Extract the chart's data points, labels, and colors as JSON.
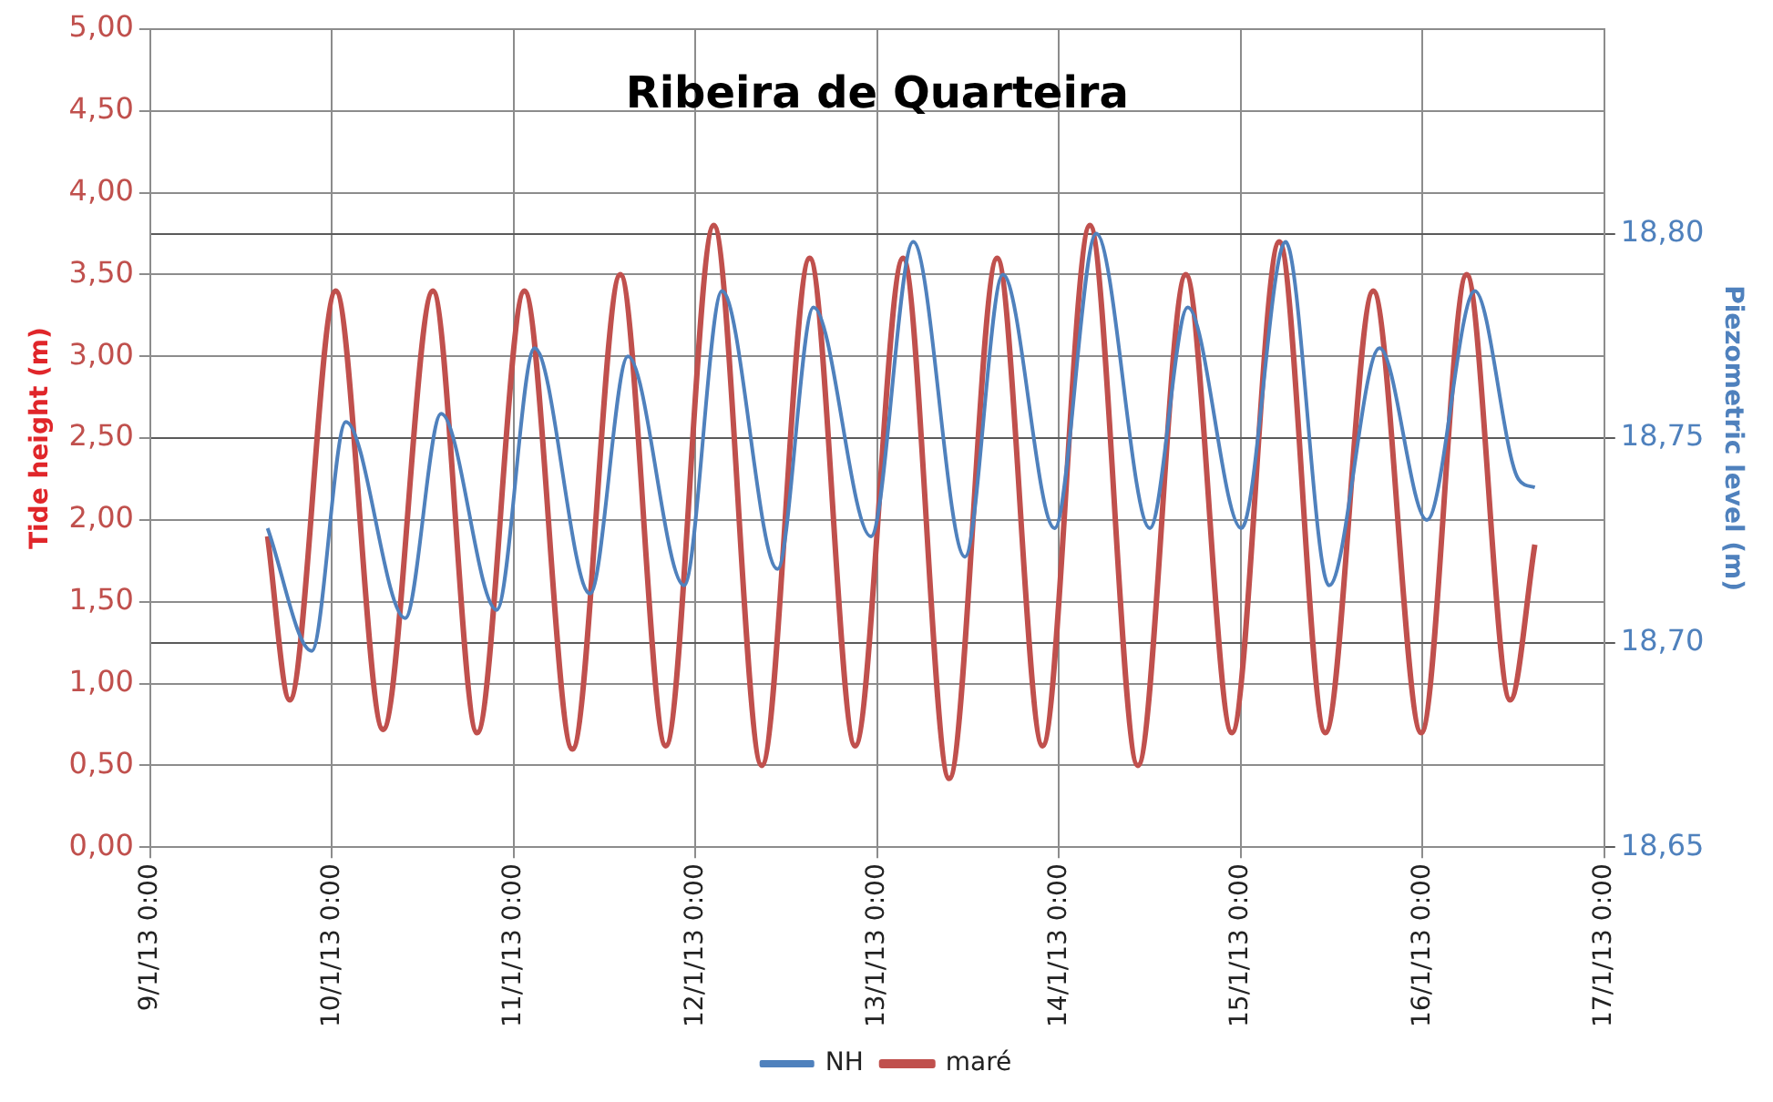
{
  "chart_data": {
    "type": "line",
    "title": "Ribeira de Quarteira",
    "ylabel": "Tide height (m)",
    "y2label": "Piezometric level (m)",
    "xlim": [
      "--01-09",
      "--01-17"
    ],
    "xticks": [
      {
        "value": "--01-09",
        "label": "9/1/13 0:00"
      },
      {
        "value": "--01-10",
        "label": "10/1/13 0:00"
      },
      {
        "value": "--01-11",
        "label": "11/1/13 0:00"
      },
      {
        "value": "--01-12",
        "label": "12/1/13 0:00"
      },
      {
        "value": "--01-13",
        "label": "13/1/13 0:00"
      },
      {
        "value": "--01-14",
        "label": "14/1/13 0:00"
      },
      {
        "value": "--01-15",
        "label": "15/1/13 0:00"
      },
      {
        "value": "--01-16",
        "label": "16/1/13 0:00"
      },
      {
        "value": "--01-17",
        "label": "17/1/13 0:00"
      }
    ],
    "ylim": [
      0,
      5
    ],
    "yticks": [
      {
        "value": 0,
        "label": "0,00"
      },
      {
        "value": 0.5,
        "label": "0,50"
      },
      {
        "value": 1,
        "label": "1,00"
      },
      {
        "value": 1.5,
        "label": "1,50"
      },
      {
        "value": 2,
        "label": "2,00"
      },
      {
        "value": 2.5,
        "label": "2,50"
      },
      {
        "value": 3,
        "label": "3,00"
      },
      {
        "value": 3.5,
        "label": "3,50"
      },
      {
        "value": 4,
        "label": "4,00"
      },
      {
        "value": 4.5,
        "label": "4,50"
      },
      {
        "value": 5,
        "label": "5,00"
      }
    ],
    "y2lim": [
      18.65,
      18.85
    ],
    "y2ticks": [
      {
        "value": 18.65,
        "label": "18,65"
      },
      {
        "value": 18.7,
        "label": "18,70"
      },
      {
        "value": 18.75,
        "label": "18,75"
      },
      {
        "value": 18.8,
        "label": "18,80"
      }
    ],
    "grid": true,
    "legend": "bottom",
    "marker": "none",
    "line_style": "solid",
    "series": [
      {
        "name": "NH",
        "color": "#4f81bd",
        "axis": "y2",
        "x": [
          "--01-09T15:30",
          "--01-09T21:20",
          "--01-10T01:50",
          "--01-10T09:40",
          "--01-10T14:25",
          "--01-10T21:45",
          "--01-11T02:45",
          "--01-11T10:05",
          "--01-11T15:05",
          "--01-11T22:30",
          "--01-12T03:30",
          "--01-12T10:50",
          "--01-12T15:35",
          "--01-12T23:10",
          "--01-13T04:45",
          "--01-13T11:35",
          "--01-13T16:35",
          "--01-13T23:25",
          "--01-14T04:55",
          "--01-14T12:00",
          "--01-14T17:00",
          "--01-15T00:05",
          "--01-15T05:55",
          "--01-15T11:40",
          "--01-15T18:20",
          "--01-16T00:35",
          "--01-16T06:55",
          "--01-16T12:40",
          "--01-16T14:50"
        ],
        "values": [
          18.728,
          18.698,
          18.754,
          18.706,
          18.756,
          18.708,
          18.772,
          18.712,
          18.77,
          18.714,
          18.786,
          18.718,
          18.782,
          18.726,
          18.798,
          18.721,
          18.79,
          18.728,
          18.8,
          18.728,
          18.782,
          18.728,
          18.798,
          18.714,
          18.772,
          18.73,
          18.786,
          18.74,
          18.738
        ]
      },
      {
        "name": "maré",
        "color": "#c0504d",
        "x": [
          "--01-09T15:30",
          "--01-09T18:25",
          "--01-10T00:30",
          "--01-10T06:45",
          "--01-10T13:20",
          "--01-10T19:10",
          "--01-11T01:25",
          "--01-11T07:45",
          "--01-11T14:05",
          "--01-11T20:05",
          "--01-12T02:25",
          "--01-12T08:45",
          "--01-12T15:05",
          "--01-12T21:05",
          "--01-13T03:25",
          "--01-13T09:30",
          "--01-13T15:50",
          "--01-13T21:50",
          "--01-14T04:05",
          "--01-14T10:25",
          "--01-14T16:45",
          "--01-14T22:50",
          "--01-15T05:05",
          "--01-15T11:10",
          "--01-15T17:30",
          "--01-15T23:50",
          "--01-16T05:50",
          "--01-16T11:35",
          "--01-16T14:50"
        ],
        "values": [
          1.9,
          0.9,
          3.4,
          0.72,
          3.4,
          0.7,
          3.4,
          0.6,
          3.5,
          0.62,
          3.8,
          0.5,
          3.6,
          0.62,
          3.6,
          0.42,
          3.6,
          0.62,
          3.8,
          0.5,
          3.5,
          0.7,
          3.7,
          0.7,
          3.4,
          0.7,
          3.5,
          0.9,
          1.85
        ]
      }
    ]
  }
}
